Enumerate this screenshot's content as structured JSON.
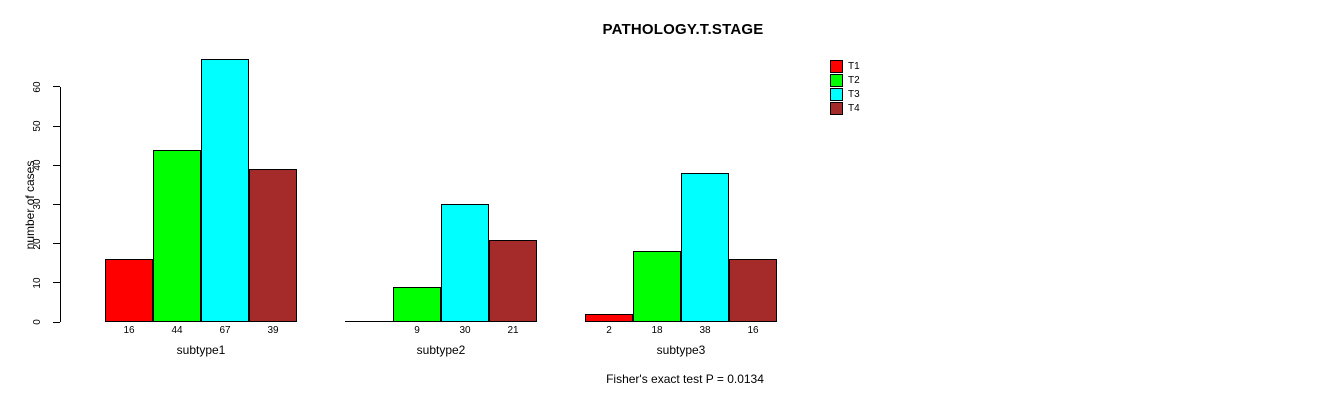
{
  "title": "PATHOLOGY.T.STAGE",
  "footer": "Fisher's exact test P = 0.0134",
  "chart_data": {
    "type": "bar",
    "title": "PATHOLOGY.T.STAGE",
    "xlabel": "",
    "ylabel": "number of cases",
    "categories": [
      "subtype1",
      "subtype2",
      "subtype3"
    ],
    "series": [
      {
        "name": "T1",
        "color": "#ff0000",
        "values": [
          16,
          0,
          2
        ]
      },
      {
        "name": "T2",
        "color": "#00ff00",
        "values": [
          44,
          9,
          18
        ]
      },
      {
        "name": "T3",
        "color": "#00ffff",
        "values": [
          67,
          30,
          38
        ]
      },
      {
        "name": "T4",
        "color": "#a52a2a",
        "values": [
          39,
          21,
          16
        ]
      }
    ],
    "bar_value_labels": [
      [
        "16",
        "44",
        "67",
        "39"
      ],
      [
        "",
        "9",
        "30",
        "21"
      ],
      [
        "2",
        "18",
        "38",
        "16"
      ]
    ],
    "y_ticks": [
      0,
      10,
      20,
      30,
      40,
      50,
      60
    ],
    "ylim": [
      0,
      67
    ],
    "grid": false,
    "legend_position": "right",
    "annotation": "Fisher's exact test P = 0.0134",
    "background": "#ffffff",
    "bar_border_color": "#000000"
  }
}
